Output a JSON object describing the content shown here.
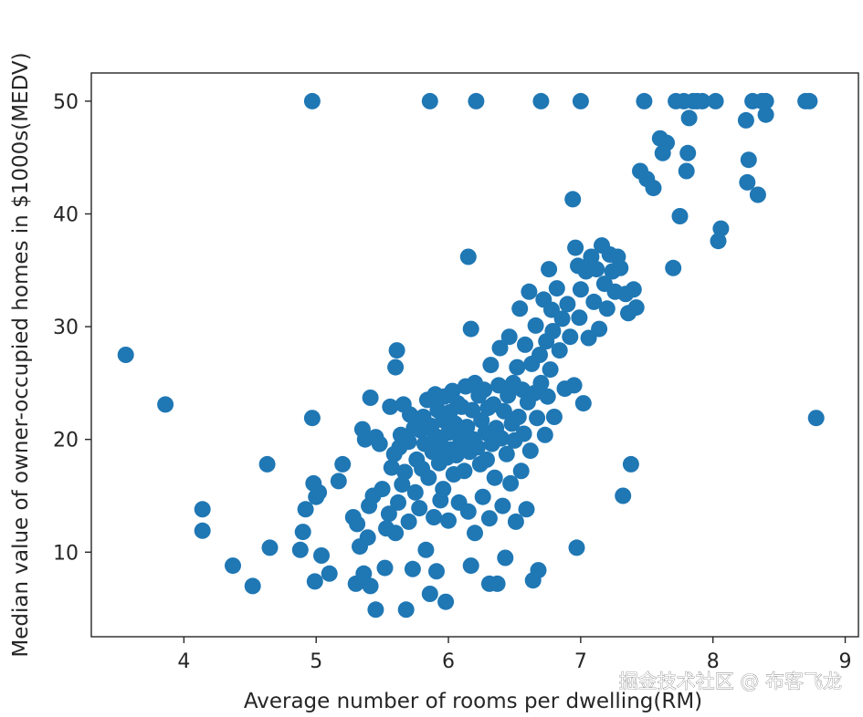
{
  "colors": {
    "marker": "#1f77b4",
    "axis": "#262626",
    "background": "#ffffff"
  },
  "watermark": "掘金技术社区 @ 布客飞龙",
  "chart_data": {
    "type": "scatter",
    "xlabel": "Average number of rooms per dwelling(RM)",
    "ylabel": "Median value of owner-occupied homes in $1000s(MEDV)",
    "xlim": [
      3.3,
      9.1
    ],
    "ylim": [
      2.5,
      52.5
    ],
    "xticks": [
      4,
      5,
      6,
      7,
      8,
      9
    ],
    "yticks": [
      10,
      20,
      30,
      40,
      50
    ],
    "grid": false,
    "legend": "none",
    "points": [
      [
        3.56,
        27.5
      ],
      [
        3.86,
        23.1
      ],
      [
        4.14,
        13.8
      ],
      [
        4.14,
        11.9
      ],
      [
        4.37,
        8.8
      ],
      [
        4.52,
        7.0
      ],
      [
        4.63,
        17.8
      ],
      [
        4.65,
        10.4
      ],
      [
        4.88,
        10.2
      ],
      [
        4.9,
        11.8
      ],
      [
        4.92,
        13.8
      ],
      [
        4.97,
        50.0
      ],
      [
        4.97,
        21.9
      ],
      [
        4.98,
        16.1
      ],
      [
        4.99,
        7.4
      ],
      [
        5.0,
        14.9
      ],
      [
        5.02,
        15.3
      ],
      [
        5.04,
        9.7
      ],
      [
        5.1,
        8.1
      ],
      [
        5.17,
        16.3
      ],
      [
        5.2,
        17.8
      ],
      [
        5.28,
        13.1
      ],
      [
        5.3,
        7.2
      ],
      [
        5.31,
        12.5
      ],
      [
        5.33,
        10.5
      ],
      [
        5.35,
        20.9
      ],
      [
        5.36,
        8.1
      ],
      [
        5.37,
        20.0
      ],
      [
        5.39,
        11.3
      ],
      [
        5.4,
        14.1
      ],
      [
        5.41,
        23.7
      ],
      [
        5.41,
        7.0
      ],
      [
        5.43,
        15.0
      ],
      [
        5.45,
        20.2
      ],
      [
        5.45,
        4.9
      ],
      [
        5.48,
        19.6
      ],
      [
        5.5,
        15.6
      ],
      [
        5.52,
        8.6
      ],
      [
        5.53,
        12.1
      ],
      [
        5.55,
        13.4
      ],
      [
        5.56,
        22.9
      ],
      [
        5.57,
        17.5
      ],
      [
        5.59,
        18.7
      ],
      [
        5.6,
        26.4
      ],
      [
        5.6,
        11.7
      ],
      [
        5.61,
        27.9
      ],
      [
        5.62,
        14.4
      ],
      [
        5.63,
        19.3
      ],
      [
        5.64,
        20.4
      ],
      [
        5.65,
        16.0
      ],
      [
        5.66,
        23.1
      ],
      [
        5.67,
        17.1
      ],
      [
        5.68,
        4.9
      ],
      [
        5.7,
        19.8
      ],
      [
        5.7,
        12.7
      ],
      [
        5.71,
        22.2
      ],
      [
        5.73,
        8.5
      ],
      [
        5.74,
        21.0
      ],
      [
        5.75,
        15.3
      ],
      [
        5.76,
        18.2
      ],
      [
        5.78,
        13.9
      ],
      [
        5.79,
        20.8
      ],
      [
        5.8,
        17.4
      ],
      [
        5.81,
        22.0
      ],
      [
        5.82,
        19.6
      ],
      [
        5.83,
        10.2
      ],
      [
        5.84,
        23.5
      ],
      [
        5.85,
        16.6
      ],
      [
        5.86,
        50.0
      ],
      [
        5.86,
        6.3
      ],
      [
        5.87,
        21.2
      ],
      [
        5.88,
        18.9
      ],
      [
        5.89,
        13.1
      ],
      [
        5.9,
        20.3
      ],
      [
        5.9,
        24.0
      ],
      [
        5.91,
        8.3
      ],
      [
        5.92,
        22.6
      ],
      [
        5.93,
        17.9
      ],
      [
        5.94,
        14.6
      ],
      [
        5.95,
        19.4
      ],
      [
        5.96,
        21.7
      ],
      [
        5.96,
        15.6
      ],
      [
        5.97,
        23.8
      ],
      [
        5.98,
        5.6
      ],
      [
        5.99,
        18.4
      ],
      [
        6.0,
        20.6
      ],
      [
        6.0,
        12.8
      ],
      [
        6.01,
        22.4
      ],
      [
        6.02,
        19.1
      ],
      [
        6.03,
        24.3
      ],
      [
        6.04,
        16.9
      ],
      [
        6.05,
        21.4
      ],
      [
        6.06,
        18.6
      ],
      [
        6.07,
        23.2
      ],
      [
        6.08,
        14.4
      ],
      [
        6.09,
        20.1
      ],
      [
        6.1,
        22.9
      ],
      [
        6.11,
        19.7
      ],
      [
        6.12,
        17.2
      ],
      [
        6.13,
        24.7
      ],
      [
        6.14,
        21.1
      ],
      [
        6.15,
        36.2
      ],
      [
        6.15,
        13.6
      ],
      [
        6.16,
        18.9
      ],
      [
        6.17,
        29.8
      ],
      [
        6.17,
        8.8
      ],
      [
        6.18,
        22.6
      ],
      [
        6.19,
        20.0
      ],
      [
        6.2,
        25.0
      ],
      [
        6.2,
        11.7
      ],
      [
        6.21,
        50.0
      ],
      [
        6.22,
        19.3
      ],
      [
        6.23,
        23.9
      ],
      [
        6.24,
        17.8
      ],
      [
        6.25,
        21.7
      ],
      [
        6.26,
        14.9
      ],
      [
        6.27,
        24.4
      ],
      [
        6.28,
        20.6
      ],
      [
        6.29,
        18.2
      ],
      [
        6.3,
        22.8
      ],
      [
        6.31,
        7.2
      ],
      [
        6.31,
        13.0
      ],
      [
        6.32,
        26.6
      ],
      [
        6.33,
        19.6
      ],
      [
        6.34,
        23.1
      ],
      [
        6.35,
        16.6
      ],
      [
        6.36,
        21.0
      ],
      [
        6.37,
        7.2
      ],
      [
        6.38,
        24.8
      ],
      [
        6.39,
        28.1
      ],
      [
        6.4,
        20.1
      ],
      [
        6.41,
        14.1
      ],
      [
        6.42,
        22.5
      ],
      [
        6.43,
        9.5
      ],
      [
        6.44,
        18.7
      ],
      [
        6.45,
        23.9
      ],
      [
        6.46,
        29.1
      ],
      [
        6.47,
        16.1
      ],
      [
        6.48,
        21.4
      ],
      [
        6.49,
        25.0
      ],
      [
        6.5,
        19.9
      ],
      [
        6.51,
        12.7
      ],
      [
        6.52,
        26.4
      ],
      [
        6.53,
        22.0
      ],
      [
        6.54,
        31.6
      ],
      [
        6.55,
        17.2
      ],
      [
        6.56,
        24.4
      ],
      [
        6.57,
        20.5
      ],
      [
        6.58,
        28.4
      ],
      [
        6.59,
        13.8
      ],
      [
        6.6,
        23.3
      ],
      [
        6.61,
        33.1
      ],
      [
        6.62,
        19.0
      ],
      [
        6.63,
        26.7
      ],
      [
        6.64,
        7.5
      ],
      [
        6.65,
        24.1
      ],
      [
        6.66,
        30.1
      ],
      [
        6.67,
        21.9
      ],
      [
        6.68,
        8.4
      ],
      [
        6.69,
        27.5
      ],
      [
        6.7,
        50.0
      ],
      [
        6.7,
        25.0
      ],
      [
        6.72,
        32.4
      ],
      [
        6.73,
        20.4
      ],
      [
        6.74,
        28.7
      ],
      [
        6.75,
        23.8
      ],
      [
        6.76,
        35.1
      ],
      [
        6.77,
        26.2
      ],
      [
        6.78,
        31.5
      ],
      [
        6.79,
        29.6
      ],
      [
        6.8,
        22.0
      ],
      [
        6.82,
        33.4
      ],
      [
        6.84,
        27.9
      ],
      [
        6.86,
        30.7
      ],
      [
        6.88,
        24.5
      ],
      [
        6.9,
        32.0
      ],
      [
        6.92,
        29.1
      ],
      [
        6.94,
        41.3
      ],
      [
        6.95,
        24.8
      ],
      [
        6.96,
        37.0
      ],
      [
        6.97,
        10.4
      ],
      [
        6.98,
        35.4
      ],
      [
        6.99,
        30.8
      ],
      [
        7.0,
        33.3
      ],
      [
        7.0,
        50.0
      ],
      [
        7.02,
        23.2
      ],
      [
        7.04,
        34.9
      ],
      [
        7.06,
        29.0
      ],
      [
        7.08,
        36.2
      ],
      [
        7.1,
        32.2
      ],
      [
        7.12,
        35.1
      ],
      [
        7.14,
        29.8
      ],
      [
        7.16,
        37.2
      ],
      [
        7.18,
        33.8
      ],
      [
        7.2,
        31.6
      ],
      [
        7.22,
        36.4
      ],
      [
        7.24,
        34.9
      ],
      [
        7.26,
        33.1
      ],
      [
        7.28,
        36.2
      ],
      [
        7.3,
        35.2
      ],
      [
        7.32,
        15.0
      ],
      [
        7.34,
        32.9
      ],
      [
        7.36,
        31.2
      ],
      [
        7.38,
        17.8
      ],
      [
        7.4,
        33.3
      ],
      [
        7.42,
        31.7
      ],
      [
        7.45,
        43.8
      ],
      [
        7.48,
        50.0
      ],
      [
        7.5,
        43.1
      ],
      [
        7.55,
        42.3
      ],
      [
        7.6,
        46.7
      ],
      [
        7.62,
        45.4
      ],
      [
        7.65,
        46.3
      ],
      [
        7.7,
        35.2
      ],
      [
        7.72,
        50.0
      ],
      [
        7.75,
        39.8
      ],
      [
        7.78,
        50.0
      ],
      [
        7.8,
        43.8
      ],
      [
        7.81,
        45.4
      ],
      [
        7.82,
        48.5
      ],
      [
        7.85,
        50.0
      ],
      [
        7.88,
        50.0
      ],
      [
        7.92,
        50.0
      ],
      [
        8.02,
        50.0
      ],
      [
        8.04,
        37.6
      ],
      [
        8.06,
        38.7
      ],
      [
        8.25,
        48.3
      ],
      [
        8.26,
        42.8
      ],
      [
        8.27,
        44.8
      ],
      [
        8.3,
        50.0
      ],
      [
        8.34,
        41.7
      ],
      [
        8.37,
        50.0
      ],
      [
        8.4,
        48.8
      ],
      [
        8.4,
        50.0
      ],
      [
        8.7,
        50.0
      ],
      [
        8.73,
        50.0
      ],
      [
        8.78,
        21.9
      ]
    ]
  }
}
